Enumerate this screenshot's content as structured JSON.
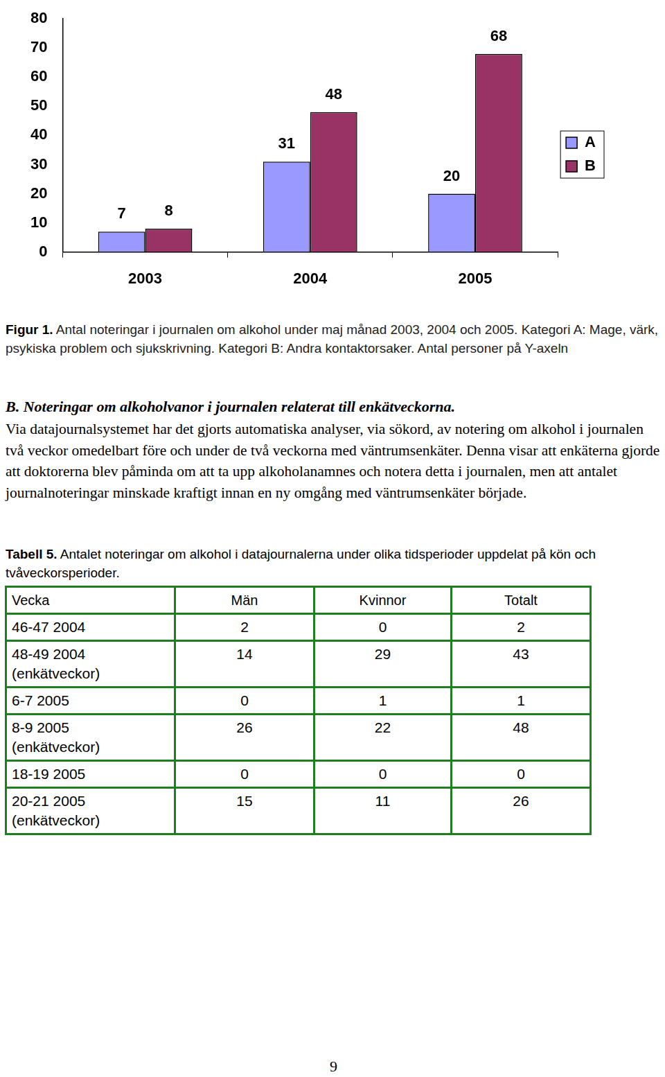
{
  "chart_data": {
    "type": "bar",
    "categories": [
      "2003",
      "2004",
      "2005"
    ],
    "series": [
      {
        "name": "A",
        "color": "#9999ff",
        "values": [
          7,
          31,
          20
        ]
      },
      {
        "name": "B",
        "color": "#993366",
        "values": [
          8,
          48,
          68
        ]
      }
    ],
    "ylim": [
      0,
      80
    ],
    "yticks": [
      0,
      10,
      20,
      30,
      40,
      50,
      60,
      70,
      80
    ],
    "grid": false,
    "legend": "right",
    "data_labels": true
  },
  "caption": {
    "label": "Figur 1.",
    "text": "Antal noteringar i journalen om alkohol under maj månad 2003, 2004 och 2005. Kategori A: Mage, värk, psykiska problem och sjukskrivning. Kategori B: Andra kontaktorsaker. Antal personer på Y-axeln"
  },
  "section": {
    "heading": "B. Noteringar om alkoholvanor i journalen relaterat till enkätveckorna.",
    "paragraph": "Via datajournalsystemet har det gjorts  automatiska analyser, via sökord, av notering om alkohol i journalen två veckor omedelbart före och under de två veckorna med väntrumsenkäter. Denna visar att enkäterna gjorde att doktorerna blev påminda om att ta upp alkoholanamnes och notera detta i journalen, men att antalet journalnoteringar minskade kraftigt innan en ny omgång med väntrumsenkäter började."
  },
  "table_caption": {
    "label": "Tabell 5.",
    "text": "Antalet noteringar om alkohol i datajournalerna under olika tidsperioder uppdelat på kön och tvåveckorsperioder."
  },
  "table": {
    "header": [
      "Vecka",
      "Män",
      "Kvinnor",
      "Totalt"
    ],
    "rows": [
      [
        "46-47  2004",
        2,
        0,
        2
      ],
      [
        "48-49 2004\n(enkätveckor)",
        14,
        29,
        43
      ],
      [
        "6-7 2005",
        0,
        1,
        1
      ],
      [
        "8-9 2005\n(enkätveckor)",
        26,
        22,
        48
      ],
      [
        "18-19 2005",
        0,
        0,
        0
      ],
      [
        "20-21 2005\n(enkätveckor)",
        15,
        11,
        26
      ]
    ]
  },
  "page_number": 9
}
